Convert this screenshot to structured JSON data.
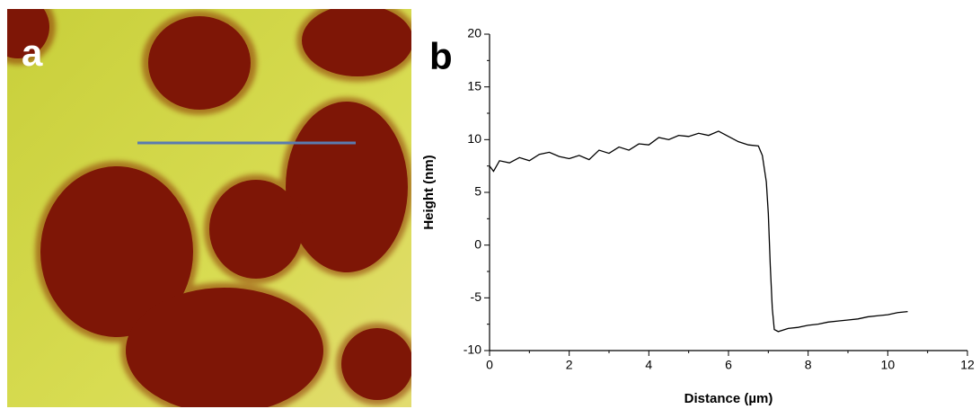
{
  "panel_labels": [
    "a",
    "b"
  ],
  "chart_data": {
    "type": "line",
    "x_label": "Distance (µm)",
    "y_label": "Height (nm)",
    "x": [
      0,
      0.1,
      0.25,
      0.5,
      0.75,
      1.0,
      1.25,
      1.5,
      1.75,
      2.0,
      2.25,
      2.5,
      2.75,
      3.0,
      3.25,
      3.5,
      3.75,
      4.0,
      4.25,
      4.5,
      4.75,
      5.0,
      5.25,
      5.5,
      5.75,
      6.0,
      6.25,
      6.5,
      6.75,
      6.85,
      6.95,
      7.0,
      7.05,
      7.1,
      7.15,
      7.25,
      7.5,
      7.75,
      8.0,
      8.25,
      8.5,
      8.75,
      9.0,
      9.25,
      9.5,
      9.75,
      10.0,
      10.25,
      10.5
    ],
    "values": [
      7.5,
      7.0,
      8.0,
      7.8,
      8.3,
      8.0,
      8.6,
      8.8,
      8.4,
      8.2,
      8.5,
      8.1,
      9.0,
      8.7,
      9.3,
      9.0,
      9.6,
      9.5,
      10.2,
      10.0,
      10.4,
      10.3,
      10.6,
      10.4,
      10.8,
      10.3,
      9.8,
      9.5,
      9.4,
      8.5,
      6.0,
      3.0,
      -2,
      -6,
      -8.0,
      -8.2,
      -7.9,
      -7.8,
      -7.6,
      -7.5,
      -7.3,
      -7.2,
      -7.1,
      -7.0,
      -6.8,
      -6.7,
      -6.6,
      -6.4,
      -6.3
    ],
    "color": "#000000",
    "xlim": [
      0,
      12
    ],
    "xticks": [
      0,
      2,
      4,
      6,
      8,
      10,
      12
    ],
    "ylim": [
      -10,
      20
    ],
    "yticks": [
      -10,
      -5,
      0,
      5,
      10,
      15,
      20
    ]
  }
}
